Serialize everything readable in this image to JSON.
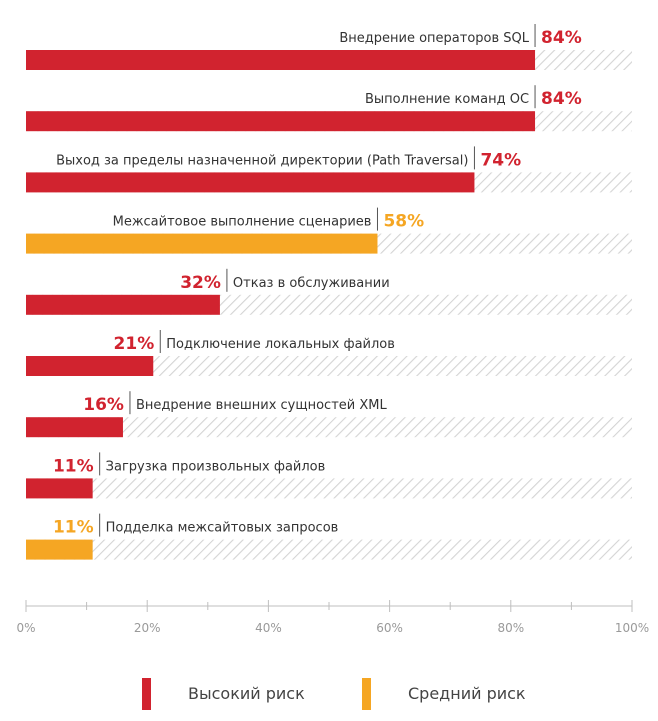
{
  "chart_data": {
    "type": "bar",
    "orientation": "horizontal",
    "categories": [
      "Внедрение операторов SQL",
      "Выполнение команд ОС",
      "Выход за пределы назначенной директории (Path Traversal)",
      "Межсайтовое выполнение сценариев",
      "Отказ в обслуживании",
      "Подключение локальных файлов",
      "Внедрение внешних сущностей XML",
      "Загрузка произвольных файлов",
      "Подделка межсайтовых запросов"
    ],
    "values": [
      84,
      84,
      74,
      58,
      32,
      21,
      16,
      11,
      11
    ],
    "value_labels": [
      "84%",
      "84%",
      "74%",
      "58%",
      "32%",
      "21%",
      "16%",
      "11%",
      "11%"
    ],
    "risk": [
      "high",
      "high",
      "high",
      "medium",
      "high",
      "high",
      "high",
      "high",
      "medium"
    ],
    "xlim": [
      0,
      100
    ],
    "ticks": [
      0,
      20,
      40,
      60,
      80,
      100
    ],
    "tick_labels": [
      "0%",
      "20%",
      "40%",
      "60%",
      "80%",
      "100%"
    ],
    "legend": [
      {
        "key": "high",
        "label": "Высокий риск",
        "color": "#d1232f"
      },
      {
        "key": "medium",
        "label": "Средний риск",
        "color": "#f5a623"
      }
    ],
    "legend_position": "bottom",
    "background_pattern": "hatched"
  },
  "colors": {
    "high": "#d1232f",
    "medium": "#f5a623",
    "hatch": "#d4d4d4",
    "axis": "#bfbfbf"
  }
}
